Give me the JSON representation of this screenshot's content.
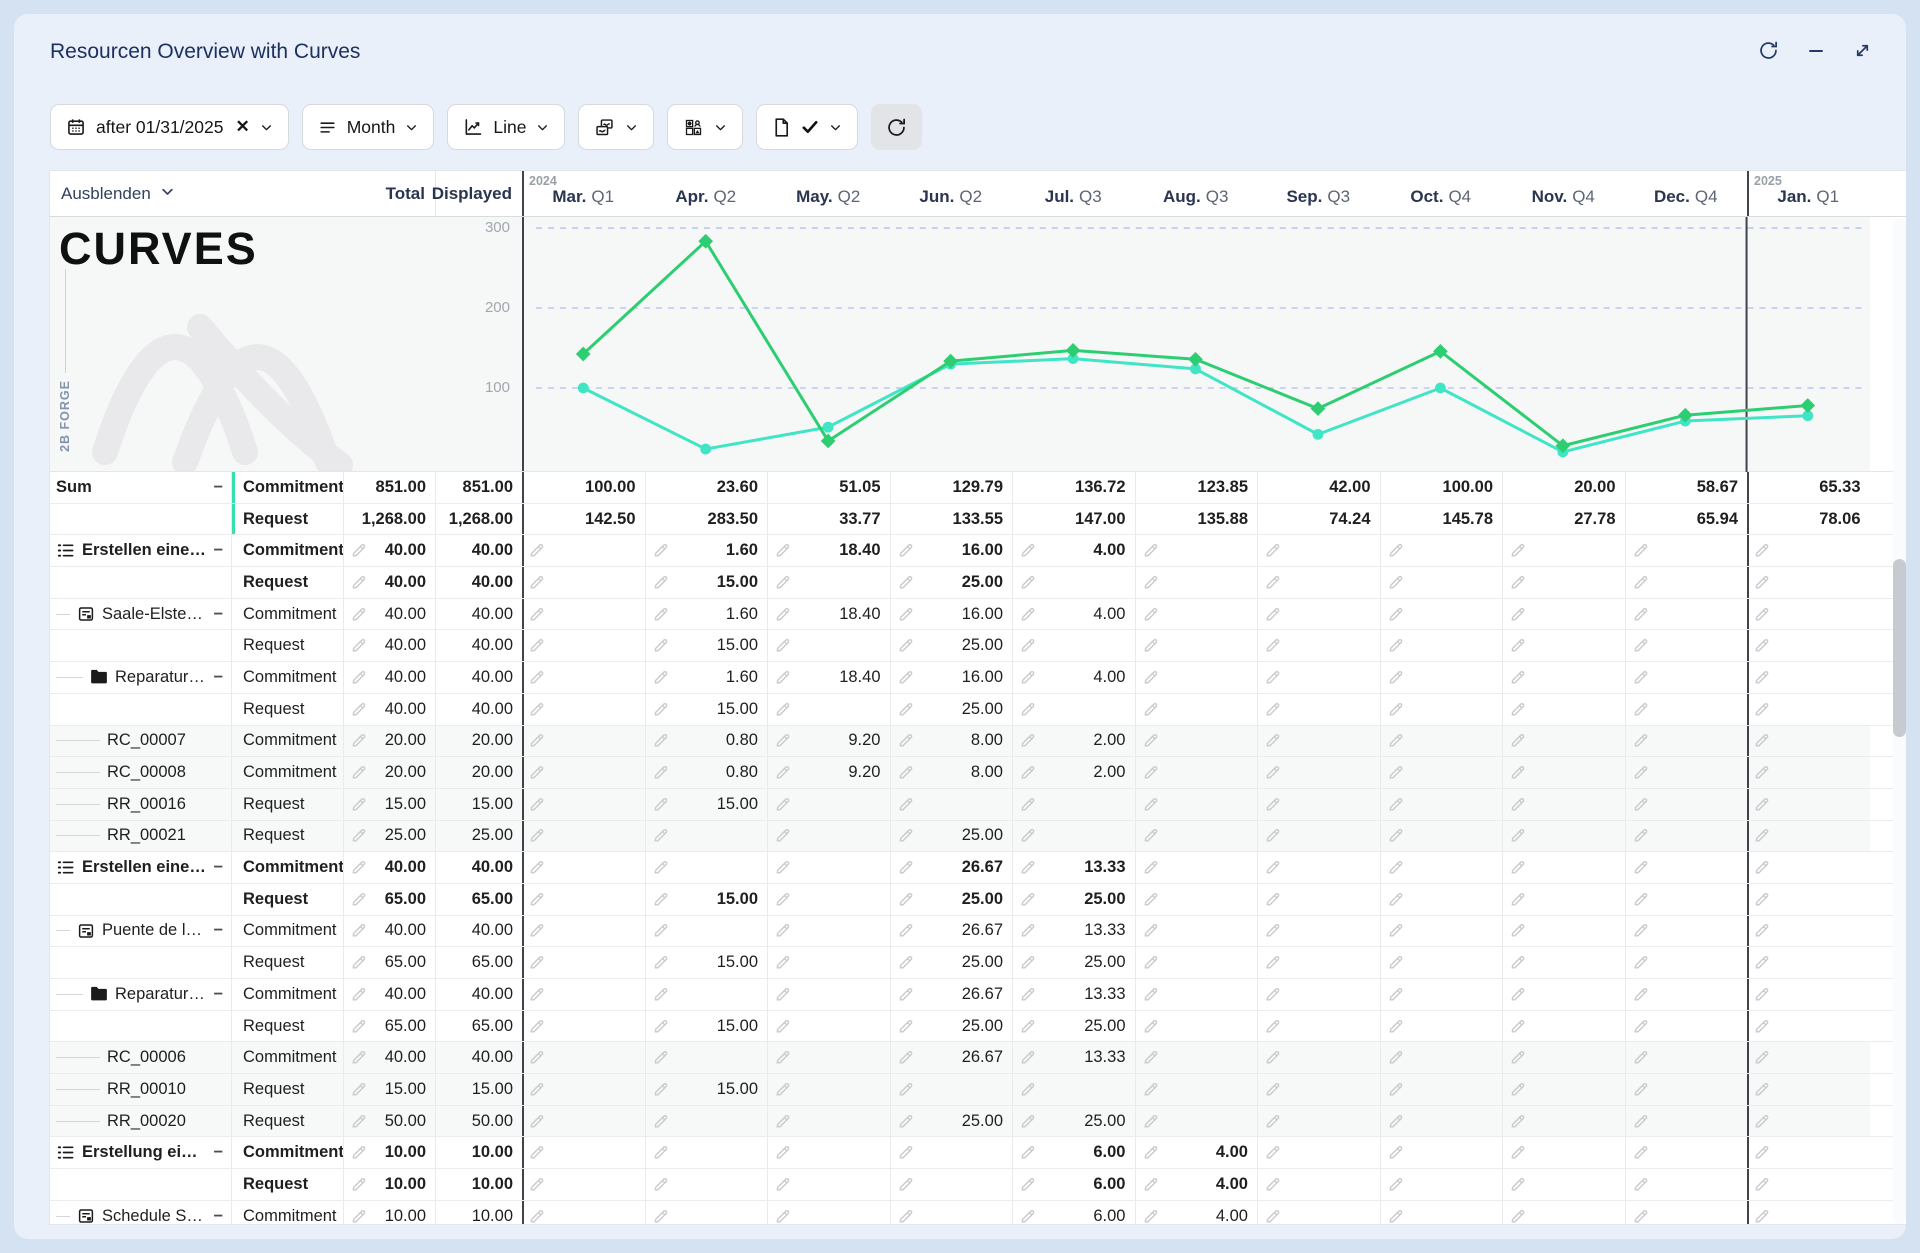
{
  "window": {
    "title": "Resourcen Overview with Curves"
  },
  "titlebar_icons": {
    "refresh": "refresh-icon",
    "minimize": "minimize-icon",
    "expand": "expand-icon"
  },
  "toolbar": {
    "date_filter": {
      "icon": "calendar-icon",
      "label": "after 01/31/2025",
      "clear": "✕"
    },
    "interval": {
      "icon": "menu-lines-icon",
      "label": "Month"
    },
    "chart_type": {
      "icon": "line-chart-icon",
      "label": "Line"
    },
    "layout_picker": {
      "icon": "multi-chart-icon"
    },
    "category_picker": {
      "icon": "tiles-icon"
    },
    "document_confirm": {
      "icon": "document-check-icon"
    },
    "refresh_button": {
      "icon": "refresh-icon"
    }
  },
  "logo": {
    "text": "CURVES",
    "watermark": "2B FORGE"
  },
  "table": {
    "header": {
      "name_col": "Ausblenden",
      "total_col": "Total",
      "displayed_col": "Displayed"
    },
    "months": [
      {
        "m": "Mar.",
        "q": "Q1",
        "year": "2024"
      },
      {
        "m": "Apr.",
        "q": "Q2"
      },
      {
        "m": "May.",
        "q": "Q2"
      },
      {
        "m": "Jun.",
        "q": "Q2"
      },
      {
        "m": "Jul.",
        "q": "Q3"
      },
      {
        "m": "Aug.",
        "q": "Q3"
      },
      {
        "m": "Sep.",
        "q": "Q3"
      },
      {
        "m": "Oct.",
        "q": "Q4"
      },
      {
        "m": "Nov.",
        "q": "Q4"
      },
      {
        "m": "Dec.",
        "q": "Q4"
      },
      {
        "m": "Jan.",
        "q": "Q1",
        "year": "2025"
      }
    ],
    "yticks": [
      "300",
      "200",
      "100"
    ],
    "rows": [
      {
        "level": 0,
        "name": "Sum",
        "icon": null,
        "collapse": true,
        "type": "Commitment",
        "total": "851.00",
        "displayed": "851.00",
        "sum": true,
        "bold": true,
        "months": [
          "100.00",
          "23.60",
          "51.05",
          "129.79",
          "136.72",
          "123.85",
          "42.00",
          "100.00",
          "20.00",
          "58.67",
          "65.33"
        ]
      },
      {
        "level": 0,
        "name": "",
        "icon": null,
        "collapse": false,
        "type": "Request",
        "total": "1,268.00",
        "displayed": "1,268.00",
        "sum": true,
        "bold": true,
        "months": [
          "142.50",
          "283.50",
          "33.77",
          "133.55",
          "147.00",
          "135.88",
          "74.24",
          "145.78",
          "27.78",
          "65.94",
          "78.06"
        ]
      },
      {
        "level": 0,
        "name": "Erstellen eines …",
        "icon": "tasklist-icon",
        "collapse": true,
        "type": "Commitment",
        "total": "40.00",
        "displayed": "40.00",
        "bold": true,
        "months": [
          "",
          "1.60",
          "18.40",
          "16.00",
          "4.00",
          "",
          "",
          "",
          "",
          "",
          ""
        ]
      },
      {
        "level": 0,
        "name": "",
        "icon": null,
        "collapse": false,
        "type": "Request",
        "total": "40.00",
        "displayed": "40.00",
        "bold": true,
        "months": [
          "",
          "15.00",
          "",
          "25.00",
          "",
          "",
          "",
          "",
          "",
          "",
          ""
        ]
      },
      {
        "level": 1,
        "name": "Saale-Elster-…",
        "icon": "project-icon",
        "collapse": true,
        "type": "Commitment",
        "total": "40.00",
        "displayed": "40.00",
        "months": [
          "",
          "1.60",
          "18.40",
          "16.00",
          "4.00",
          "",
          "",
          "",
          "",
          "",
          ""
        ]
      },
      {
        "level": 1,
        "name": "",
        "icon": null,
        "collapse": false,
        "type": "Request",
        "total": "40.00",
        "displayed": "40.00",
        "months": [
          "",
          "15.00",
          "",
          "25.00",
          "",
          "",
          "",
          "",
          "",
          "",
          ""
        ]
      },
      {
        "level": 2,
        "name": "Reparatur …",
        "icon": "folder-icon",
        "collapse": true,
        "type": "Commitment",
        "total": "40.00",
        "displayed": "40.00",
        "months": [
          "",
          "1.60",
          "18.40",
          "16.00",
          "4.00",
          "",
          "",
          "",
          "",
          "",
          ""
        ]
      },
      {
        "level": 2,
        "name": "",
        "icon": null,
        "collapse": false,
        "type": "Request",
        "total": "40.00",
        "displayed": "40.00",
        "months": [
          "",
          "15.00",
          "",
          "25.00",
          "",
          "",
          "",
          "",
          "",
          "",
          ""
        ]
      },
      {
        "level": 3,
        "name": "RC_00007",
        "icon": null,
        "collapse": false,
        "leaf": true,
        "type": "Commitment",
        "total": "20.00",
        "displayed": "20.00",
        "months": [
          "",
          "0.80",
          "9.20",
          "8.00",
          "2.00",
          "",
          "",
          "",
          "",
          "",
          ""
        ]
      },
      {
        "level": 3,
        "name": "RC_00008",
        "icon": null,
        "collapse": false,
        "leaf": true,
        "type": "Commitment",
        "total": "20.00",
        "displayed": "20.00",
        "months": [
          "",
          "0.80",
          "9.20",
          "8.00",
          "2.00",
          "",
          "",
          "",
          "",
          "",
          ""
        ]
      },
      {
        "level": 3,
        "name": "RR_00016",
        "icon": null,
        "collapse": false,
        "leaf": true,
        "type": "Request",
        "total": "15.00",
        "displayed": "15.00",
        "months": [
          "",
          "15.00",
          "",
          "",
          "",
          "",
          "",
          "",
          "",
          "",
          ""
        ]
      },
      {
        "level": 3,
        "name": "RR_00021",
        "icon": null,
        "collapse": false,
        "leaf": true,
        "type": "Request",
        "total": "25.00",
        "displayed": "25.00",
        "months": [
          "",
          "",
          "",
          "25.00",
          "",
          "",
          "",
          "",
          "",
          "",
          ""
        ]
      },
      {
        "level": 0,
        "name": "Erstellen eines …",
        "icon": "tasklist-icon",
        "collapse": true,
        "type": "Commitment",
        "total": "40.00",
        "displayed": "40.00",
        "bold": true,
        "months": [
          "",
          "",
          "",
          "26.67",
          "13.33",
          "",
          "",
          "",
          "",
          "",
          ""
        ]
      },
      {
        "level": 0,
        "name": "",
        "icon": null,
        "collapse": false,
        "type": "Request",
        "total": "65.00",
        "displayed": "65.00",
        "bold": true,
        "months": [
          "",
          "15.00",
          "",
          "25.00",
          "25.00",
          "",
          "",
          "",
          "",
          "",
          ""
        ]
      },
      {
        "level": 1,
        "name": "Puente de la…",
        "icon": "project-icon",
        "collapse": true,
        "type": "Commitment",
        "total": "40.00",
        "displayed": "40.00",
        "months": [
          "",
          "",
          "",
          "26.67",
          "13.33",
          "",
          "",
          "",
          "",
          "",
          ""
        ]
      },
      {
        "level": 1,
        "name": "",
        "icon": null,
        "collapse": false,
        "type": "Request",
        "total": "65.00",
        "displayed": "65.00",
        "months": [
          "",
          "15.00",
          "",
          "25.00",
          "25.00",
          "",
          "",
          "",
          "",
          "",
          ""
        ]
      },
      {
        "level": 2,
        "name": "Reparatur …",
        "icon": "folder-icon",
        "collapse": true,
        "type": "Commitment",
        "total": "40.00",
        "displayed": "40.00",
        "months": [
          "",
          "",
          "",
          "26.67",
          "13.33",
          "",
          "",
          "",
          "",
          "",
          ""
        ]
      },
      {
        "level": 2,
        "name": "",
        "icon": null,
        "collapse": false,
        "type": "Request",
        "total": "65.00",
        "displayed": "65.00",
        "months": [
          "",
          "15.00",
          "",
          "25.00",
          "25.00",
          "",
          "",
          "",
          "",
          "",
          ""
        ]
      },
      {
        "level": 3,
        "name": "RC_00006",
        "icon": null,
        "collapse": false,
        "leaf": true,
        "type": "Commitment",
        "total": "40.00",
        "displayed": "40.00",
        "months": [
          "",
          "",
          "",
          "26.67",
          "13.33",
          "",
          "",
          "",
          "",
          "",
          ""
        ]
      },
      {
        "level": 3,
        "name": "RR_00010",
        "icon": null,
        "collapse": false,
        "leaf": true,
        "type": "Request",
        "total": "15.00",
        "displayed": "15.00",
        "months": [
          "",
          "15.00",
          "",
          "",
          "",
          "",
          "",
          "",
          "",
          "",
          ""
        ]
      },
      {
        "level": 3,
        "name": "RR_00020",
        "icon": null,
        "collapse": false,
        "leaf": true,
        "type": "Request",
        "total": "50.00",
        "displayed": "50.00",
        "months": [
          "",
          "",
          "",
          "25.00",
          "25.00",
          "",
          "",
          "",
          "",
          "",
          ""
        ]
      },
      {
        "level": 0,
        "name": "Erstellung eine…",
        "icon": "tasklist-icon",
        "collapse": true,
        "type": "Commitment",
        "total": "10.00",
        "displayed": "10.00",
        "bold": true,
        "months": [
          "",
          "",
          "",
          "",
          "6.00",
          "4.00",
          "",
          "",
          "",
          "",
          ""
        ]
      },
      {
        "level": 0,
        "name": "",
        "icon": null,
        "collapse": false,
        "type": "Request",
        "total": "10.00",
        "displayed": "10.00",
        "bold": true,
        "months": [
          "",
          "",
          "",
          "",
          "6.00",
          "4.00",
          "",
          "",
          "",
          "",
          ""
        ]
      },
      {
        "level": 1,
        "name": "Schedule SP…",
        "icon": "project-icon",
        "collapse": true,
        "type": "Commitment",
        "total": "10.00",
        "displayed": "10.00",
        "months": [
          "",
          "",
          "",
          "",
          "6.00",
          "4.00",
          "",
          "",
          "",
          "",
          ""
        ]
      }
    ]
  },
  "chart_data": {
    "type": "line",
    "categories": [
      "Mar",
      "Apr",
      "May",
      "Jun",
      "Jul",
      "Aug",
      "Sep",
      "Oct",
      "Nov",
      "Dec",
      "Jan"
    ],
    "series": [
      {
        "name": "Commitment",
        "marker": "circle",
        "values": [
          100.0,
          23.6,
          51.05,
          129.79,
          136.72,
          123.85,
          42.0,
          100.0,
          20.0,
          58.67,
          65.33
        ]
      },
      {
        "name": "Request",
        "marker": "diamond",
        "values": [
          142.5,
          283.5,
          33.77,
          133.55,
          147.0,
          135.88,
          74.24,
          145.78,
          27.78,
          65.94,
          78.06
        ]
      }
    ],
    "title": "",
    "xlabel": "",
    "ylabel": "",
    "ylim": [
      0,
      315
    ],
    "yticks": [
      100,
      200,
      300
    ],
    "grid": "dashed-horizontal",
    "legend_position": "none"
  },
  "colors": {
    "commitment_line": "#3fe5c5",
    "request_line": "#2dce71",
    "sum_accent_bar": "#35e0ae",
    "grid_dash": "#b3bdee",
    "year_divider": "#3f444a",
    "card_bg": "#e9f0fa",
    "page_bg": "#d5e2f2",
    "chart_bg": "#f6f7f7",
    "title_navy": "#1d3160"
  }
}
